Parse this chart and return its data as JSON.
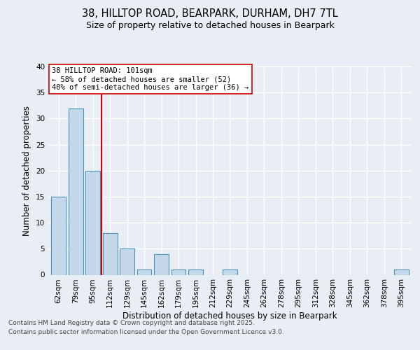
{
  "title_line1": "38, HILLTOP ROAD, BEARPARK, DURHAM, DH7 7TL",
  "title_line2": "Size of property relative to detached houses in Bearpark",
  "xlabel": "Distribution of detached houses by size in Bearpark",
  "ylabel": "Number of detached properties",
  "categories": [
    "62sqm",
    "79sqm",
    "95sqm",
    "112sqm",
    "129sqm",
    "145sqm",
    "162sqm",
    "179sqm",
    "195sqm",
    "212sqm",
    "229sqm",
    "245sqm",
    "262sqm",
    "278sqm",
    "295sqm",
    "312sqm",
    "328sqm",
    "345sqm",
    "362sqm",
    "378sqm",
    "395sqm"
  ],
  "values": [
    15,
    32,
    20,
    8,
    5,
    1,
    4,
    1,
    1,
    0,
    1,
    0,
    0,
    0,
    0,
    0,
    0,
    0,
    0,
    0,
    1
  ],
  "bar_color": "#c5d8ea",
  "bar_edge_color": "#4a90b8",
  "vline_x": 2.5,
  "vline_color": "#cc0000",
  "annotation_text": "38 HILLTOP ROAD: 101sqm\n← 58% of detached houses are smaller (52)\n40% of semi-detached houses are larger (36) →",
  "annotation_box_color": "#ffffff",
  "annotation_box_edge": "#cc0000",
  "ylim": [
    0,
    40
  ],
  "yticks": [
    0,
    5,
    10,
    15,
    20,
    25,
    30,
    35,
    40
  ],
  "footer_line1": "Contains HM Land Registry data © Crown copyright and database right 2025.",
  "footer_line2": "Contains public sector information licensed under the Open Government Licence v3.0.",
  "background_color": "#e8eef4",
  "grid_color": "#ffffff",
  "title_fontsize": 10.5,
  "subtitle_fontsize": 9,
  "axis_label_fontsize": 8.5,
  "tick_fontsize": 7.5,
  "annotation_fontsize": 7.5,
  "footer_fontsize": 6.5
}
